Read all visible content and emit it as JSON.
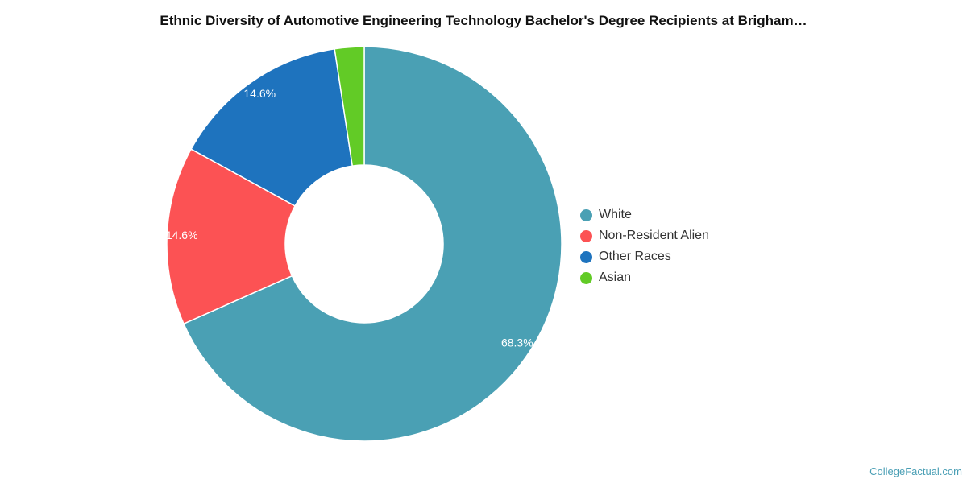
{
  "chart_data": {
    "type": "pie",
    "title": "Ethnic Diversity of Automotive Engineering Technology Bachelor's Degree Recipients at Brigham…",
    "donut": true,
    "legend_position": "right",
    "categories": [
      "White",
      "Non-Resident Alien",
      "Other Races",
      "Asian"
    ],
    "values": [
      68.3,
      14.6,
      14.6,
      2.4
    ],
    "data_labels": [
      "68.3%",
      "14.6%",
      "14.6%",
      ""
    ],
    "colors": [
      "#4aa0b4",
      "#fc5254",
      "#1e73be",
      "#62cb26"
    ]
  },
  "footer": {
    "credit": "CollegeFactual.com"
  }
}
